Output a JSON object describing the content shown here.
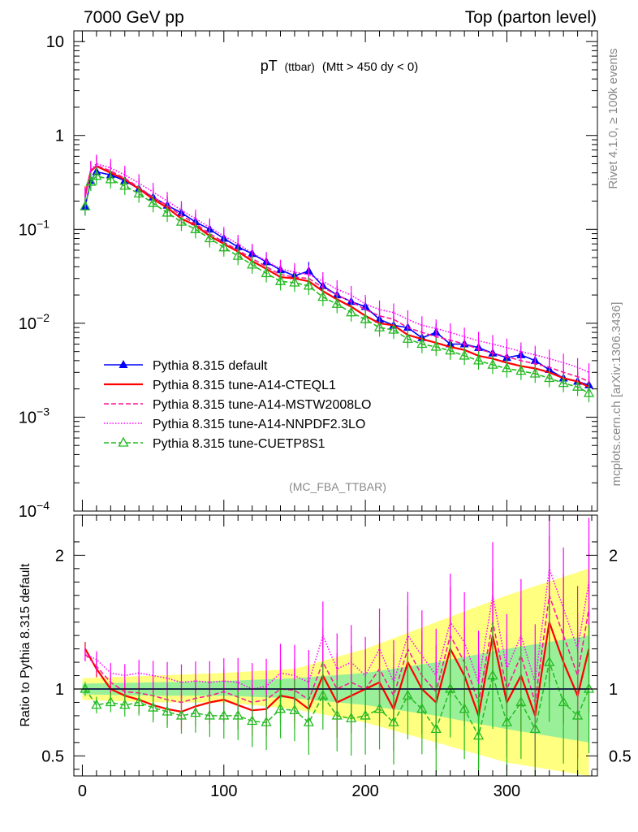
{
  "header": {
    "left": "7000 GeV pp",
    "right": "Top (parton level)"
  },
  "side": {
    "top": "Rivet 4.1.0, ≥ 100k events",
    "bottom": "mcplots.cern.ch [arXiv:1306.3436]"
  },
  "analysis_tag": "(MC_FBA_TTBAR)",
  "chart_data": [
    {
      "type": "line",
      "panel": "main",
      "title": "pT (ttbar) (Mtt > 450 dy < 0)",
      "title_main": "pT",
      "title_sub": "(ttbar)",
      "title_cut": "(Mtt > 450 dy < 0)",
      "xlabel": "",
      "ylabel": "",
      "xlim": [
        -6,
        364
      ],
      "ylim": [
        0.0001,
        13
      ],
      "yscale": "log",
      "x_ticks": [
        0,
        100,
        200,
        300
      ],
      "y_ticks": [
        {
          "value": 10,
          "base": "10",
          "exp": ""
        },
        {
          "value": 1,
          "base": "1",
          "exp": ""
        },
        {
          "value": 0.1,
          "base": "10",
          "exp": "−1"
        },
        {
          "value": 0.01,
          "base": "10",
          "exp": "−2"
        },
        {
          "value": 0.001,
          "base": "10",
          "exp": "−3"
        },
        {
          "value": 0.0001,
          "base": "10",
          "exp": "−4"
        }
      ],
      "legend_position": "lower-left",
      "series": [
        {
          "name": "Pythia 8.315 default",
          "color": "#0000ff",
          "style": "solid",
          "marker": "filled-triangle",
          "x": [
            2,
            6,
            10,
            20,
            30,
            40,
            50,
            60,
            70,
            80,
            90,
            100,
            110,
            120,
            130,
            140,
            150,
            160,
            170,
            180,
            190,
            200,
            210,
            220,
            230,
            240,
            250,
            260,
            270,
            280,
            290,
            300,
            310,
            320,
            330,
            340,
            350,
            358
          ],
          "y": [
            0.175,
            0.33,
            0.41,
            0.38,
            0.33,
            0.27,
            0.22,
            0.18,
            0.15,
            0.12,
            0.1,
            0.08,
            0.065,
            0.055,
            0.045,
            0.037,
            0.032,
            0.036,
            0.025,
            0.02,
            0.017,
            0.015,
            0.011,
            0.0095,
            0.009,
            0.007,
            0.008,
            0.006,
            0.006,
            0.0055,
            0.0048,
            0.0043,
            0.0046,
            0.004,
            0.0032,
            0.0026,
            0.0024,
            0.0022
          ]
        },
        {
          "name": "Pythia 8.315 tune-A14-CTEQL1",
          "color": "#ff0000",
          "style": "solid",
          "marker": "none",
          "x": [
            2,
            6,
            10,
            20,
            30,
            40,
            50,
            60,
            70,
            80,
            90,
            100,
            110,
            120,
            130,
            140,
            150,
            160,
            170,
            180,
            190,
            200,
            210,
            220,
            230,
            240,
            250,
            260,
            270,
            280,
            290,
            300,
            310,
            320,
            330,
            340,
            350,
            358
          ],
          "y": [
            0.23,
            0.42,
            0.47,
            0.4,
            0.34,
            0.27,
            0.21,
            0.17,
            0.13,
            0.11,
            0.085,
            0.07,
            0.058,
            0.046,
            0.038,
            0.031,
            0.03,
            0.028,
            0.022,
            0.018,
            0.015,
            0.012,
            0.01,
            0.0095,
            0.0075,
            0.0068,
            0.0062,
            0.0056,
            0.0052,
            0.0045,
            0.0042,
            0.0038,
            0.0035,
            0.0033,
            0.003,
            0.0026,
            0.0024,
            0.0021
          ]
        },
        {
          "name": "Pythia 8.315 tune-A14-MSTW2008LO",
          "color": "#ff1493",
          "style": "dashed",
          "marker": "none",
          "x": [
            2,
            6,
            10,
            20,
            30,
            40,
            50,
            60,
            70,
            80,
            90,
            100,
            110,
            120,
            130,
            140,
            150,
            160,
            170,
            180,
            190,
            200,
            210,
            220,
            230,
            240,
            250,
            260,
            270,
            280,
            290,
            300,
            310,
            320,
            330,
            340,
            350,
            358
          ],
          "y": [
            0.22,
            0.42,
            0.48,
            0.42,
            0.35,
            0.28,
            0.22,
            0.18,
            0.14,
            0.115,
            0.09,
            0.073,
            0.06,
            0.049,
            0.04,
            0.033,
            0.031,
            0.03,
            0.024,
            0.02,
            0.017,
            0.014,
            0.012,
            0.011,
            0.009,
            0.008,
            0.0072,
            0.0066,
            0.006,
            0.0053,
            0.0048,
            0.0044,
            0.004,
            0.0037,
            0.0034,
            0.003,
            0.0027,
            0.0024
          ]
        },
        {
          "name": "Pythia 8.315 tune-A14-NNPDF2.3LO",
          "color": "#ff00ff",
          "style": "dotted",
          "marker": "none",
          "x": [
            2,
            6,
            10,
            20,
            30,
            40,
            50,
            60,
            70,
            80,
            90,
            100,
            110,
            120,
            130,
            140,
            150,
            160,
            170,
            180,
            190,
            200,
            210,
            220,
            230,
            240,
            250,
            260,
            270,
            280,
            290,
            300,
            310,
            320,
            330,
            340,
            350,
            358
          ],
          "y": [
            0.22,
            0.43,
            0.5,
            0.45,
            0.38,
            0.31,
            0.25,
            0.2,
            0.16,
            0.13,
            0.105,
            0.085,
            0.07,
            0.056,
            0.046,
            0.038,
            0.035,
            0.033,
            0.028,
            0.023,
            0.02,
            0.016,
            0.014,
            0.013,
            0.011,
            0.0095,
            0.0088,
            0.008,
            0.0072,
            0.0065,
            0.006,
            0.0055,
            0.005,
            0.0046,
            0.0042,
            0.0038,
            0.0034,
            0.003
          ]
        },
        {
          "name": "Pythia 8.315 tune-CUETP8S1",
          "color": "#22bb22",
          "style": "dashed",
          "marker": "open-triangle",
          "x": [
            2,
            6,
            10,
            20,
            30,
            40,
            50,
            60,
            70,
            80,
            90,
            100,
            110,
            120,
            130,
            140,
            150,
            160,
            170,
            180,
            190,
            200,
            210,
            220,
            230,
            240,
            250,
            260,
            270,
            280,
            290,
            300,
            310,
            320,
            330,
            340,
            350,
            358
          ],
          "y": [
            0.175,
            0.32,
            0.37,
            0.34,
            0.29,
            0.24,
            0.19,
            0.15,
            0.12,
            0.1,
            0.08,
            0.064,
            0.052,
            0.042,
            0.034,
            0.028,
            0.027,
            0.025,
            0.019,
            0.016,
            0.013,
            0.011,
            0.009,
            0.0085,
            0.0068,
            0.006,
            0.0056,
            0.0051,
            0.0045,
            0.004,
            0.0036,
            0.0033,
            0.0031,
            0.0029,
            0.0026,
            0.0023,
            0.0021,
            0.0018
          ]
        }
      ]
    },
    {
      "type": "line",
      "panel": "ratio",
      "ylabel": "Ratio to Pythia 8.315 default",
      "xlim": [
        -6,
        364
      ],
      "ylim": [
        0.35,
        2.3
      ],
      "y_ticks": [
        "0.5",
        "1",
        "2"
      ],
      "x_ticks": [
        "0",
        "100",
        "200",
        "300"
      ],
      "reference_line": 1,
      "bands": [
        {
          "name": "default uncertainty (wide)",
          "color": "#ffff80",
          "x": [
            0,
            50,
            100,
            150,
            200,
            250,
            300,
            358
          ],
          "lo": [
            0.92,
            0.9,
            0.9,
            0.85,
            0.75,
            0.6,
            0.45,
            0.35
          ],
          "hi": [
            1.08,
            1.1,
            1.12,
            1.15,
            1.3,
            1.5,
            1.7,
            1.9
          ]
        },
        {
          "name": "default uncertainty (narrow)",
          "color": "#99f099",
          "x": [
            0,
            50,
            100,
            150,
            200,
            250,
            300,
            358
          ],
          "lo": [
            0.96,
            0.95,
            0.95,
            0.93,
            0.88,
            0.8,
            0.7,
            0.6
          ],
          "hi": [
            1.04,
            1.05,
            1.06,
            1.08,
            1.12,
            1.2,
            1.3,
            1.4
          ]
        }
      ],
      "series": [
        {
          "name": "Pythia 8.315 default",
          "color": "#0000ff",
          "x": [
            0,
            358
          ],
          "y": [
            1.0,
            1.0
          ]
        },
        {
          "name": "Pythia 8.315 tune-A14-CTEQL1",
          "color": "#ff0000",
          "x": [
            2,
            10,
            20,
            30,
            40,
            50,
            60,
            70,
            80,
            90,
            100,
            110,
            120,
            130,
            140,
            150,
            160,
            170,
            180,
            190,
            200,
            210,
            220,
            230,
            240,
            250,
            260,
            270,
            280,
            290,
            300,
            310,
            320,
            330,
            340,
            350,
            358
          ],
          "y": [
            1.3,
            1.15,
            1.0,
            0.95,
            0.92,
            0.88,
            0.85,
            0.83,
            0.87,
            0.9,
            0.92,
            0.88,
            0.84,
            0.85,
            0.95,
            0.93,
            0.85,
            1.1,
            0.9,
            0.95,
            1.0,
            1.05,
            0.85,
            1.2,
            1.0,
            0.9,
            1.3,
            1.1,
            0.8,
            1.4,
            0.9,
            1.1,
            0.8,
            1.5,
            1.2,
            0.95,
            1.3
          ]
        },
        {
          "name": "Pythia 8.315 tune-A14-MSTW2008LO",
          "color": "#ff1493",
          "x": [
            2,
            10,
            20,
            30,
            40,
            50,
            60,
            70,
            80,
            90,
            100,
            110,
            120,
            130,
            140,
            150,
            160,
            170,
            180,
            190,
            200,
            210,
            220,
            230,
            240,
            250,
            260,
            270,
            280,
            290,
            300,
            310,
            320,
            330,
            340,
            350,
            358
          ],
          "y": [
            1.26,
            1.17,
            1.05,
            0.98,
            0.97,
            0.95,
            0.92,
            0.9,
            0.93,
            0.95,
            0.98,
            0.94,
            0.9,
            0.92,
            1.0,
            0.99,
            0.92,
            1.2,
            1.0,
            1.05,
            1.0,
            1.15,
            0.95,
            1.3,
            1.1,
            0.98,
            1.4,
            1.2,
            0.9,
            1.5,
            1.0,
            1.25,
            0.9,
            1.7,
            1.4,
            1.1,
            1.6
          ]
        },
        {
          "name": "Pythia 8.315 tune-A14-NNPDF2.3LO",
          "color": "#ff00ff",
          "x": [
            2,
            10,
            20,
            30,
            40,
            50,
            60,
            70,
            80,
            90,
            100,
            110,
            120,
            130,
            140,
            150,
            160,
            170,
            180,
            190,
            200,
            210,
            220,
            230,
            240,
            250,
            260,
            270,
            280,
            290,
            300,
            310,
            320,
            330,
            340,
            350,
            358
          ],
          "y": [
            1.26,
            1.22,
            1.12,
            1.1,
            1.12,
            1.1,
            1.08,
            1.05,
            1.06,
            1.05,
            1.06,
            1.05,
            1.0,
            1.02,
            1.12,
            1.1,
            1.05,
            1.4,
            1.15,
            1.2,
            1.1,
            1.3,
            1.05,
            1.4,
            1.25,
            1.1,
            1.5,
            1.35,
            1.05,
            1.7,
            1.15,
            1.4,
            1.05,
            1.9,
            1.6,
            1.3,
            1.8
          ]
        },
        {
          "name": "Pythia 8.315 tune-CUETP8S1",
          "color": "#22bb22",
          "x": [
            2,
            10,
            20,
            30,
            40,
            50,
            60,
            70,
            80,
            90,
            100,
            110,
            120,
            130,
            140,
            150,
            160,
            170,
            180,
            190,
            200,
            210,
            220,
            230,
            240,
            250,
            260,
            270,
            280,
            290,
            300,
            310,
            320,
            330,
            340,
            350,
            358
          ],
          "y": [
            1.0,
            0.88,
            0.9,
            0.88,
            0.9,
            0.86,
            0.83,
            0.8,
            0.82,
            0.8,
            0.8,
            0.8,
            0.76,
            0.75,
            0.85,
            0.84,
            0.75,
            0.95,
            0.8,
            0.78,
            0.8,
            0.85,
            0.75,
            0.95,
            0.85,
            0.7,
            1.0,
            0.85,
            0.65,
            1.1,
            0.75,
            0.9,
            0.7,
            1.2,
            0.9,
            0.8,
            1.0
          ]
        }
      ]
    }
  ]
}
